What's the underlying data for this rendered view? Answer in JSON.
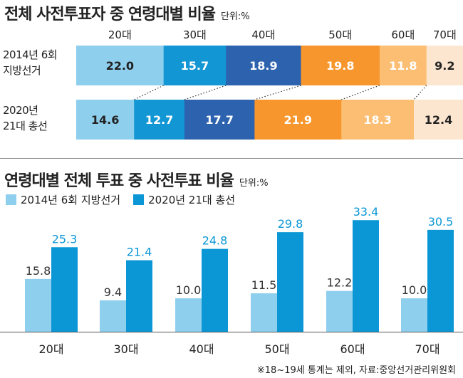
{
  "colors": {
    "age_colors": [
      "#8ecfee",
      "#1296d4",
      "#2c62ae",
      "#f7962c",
      "#fcbe72",
      "#fde6d0"
    ],
    "age_text_colors": [
      "#222222",
      "#ffffff",
      "#ffffff",
      "#ffffff",
      "#ffffff",
      "#222222"
    ],
    "series_2014": "#8ecfee",
    "series_2020": "#0b97d5"
  },
  "chart_data": [
    {
      "type": "bar",
      "orientation": "horizontal-stacked-percent",
      "title": "전체 사전투표자 중 연령대별 비율",
      "unit": "단위:%",
      "categories": [
        "20대",
        "30대",
        "40대",
        "50대",
        "60대",
        "70대"
      ],
      "series": [
        {
          "name_line1": "2014년 6회",
          "name_line2": "지방선거",
          "values": [
            22.0,
            15.7,
            18.9,
            19.8,
            11.8,
            9.2
          ]
        },
        {
          "name_line1": "2020년",
          "name_line2": "21대 총선",
          "values": [
            14.6,
            12.7,
            17.7,
            21.9,
            18.3,
            12.4
          ]
        }
      ]
    },
    {
      "type": "bar",
      "orientation": "vertical-grouped",
      "title": "연령대별 전체 투표 중 사전투표 비율",
      "unit": "단위:%",
      "categories": [
        "20대",
        "30대",
        "40대",
        "50대",
        "60대",
        "70대"
      ],
      "series": [
        {
          "name": "2014년 6회 지방선거",
          "values": [
            15.8,
            9.4,
            10.0,
            11.5,
            12.2,
            10.0
          ]
        },
        {
          "name": "2020년 21대 총선",
          "values": [
            25.3,
            21.4,
            24.8,
            29.8,
            33.4,
            30.5
          ]
        }
      ],
      "ylim": [
        0,
        36
      ]
    }
  ],
  "footnote": "※18~19세 통계는 제외, 자료:중앙선거관리위원회"
}
